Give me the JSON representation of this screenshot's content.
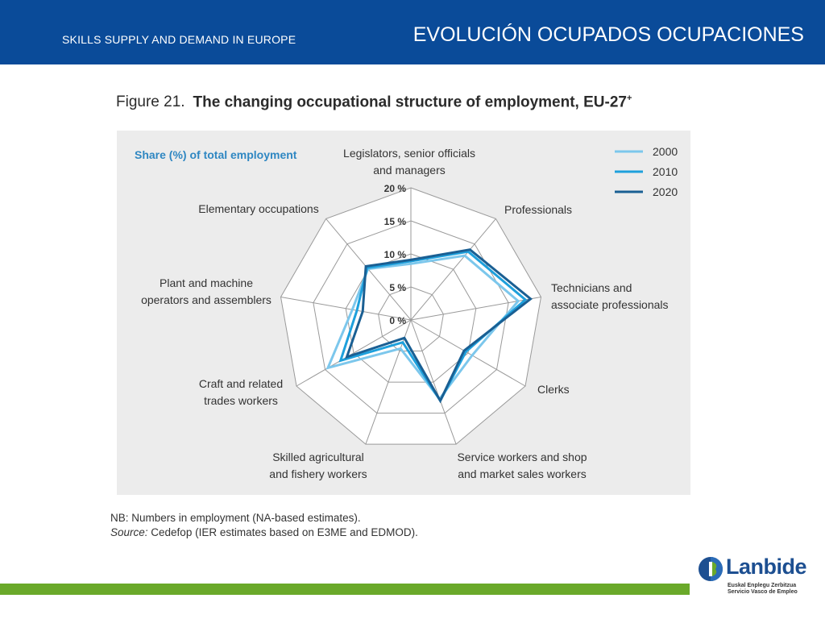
{
  "header": {
    "subtitle": "SKILLS SUPPLY AND DEMAND IN EUROPE",
    "title": "EVOLUCIÓN OCUPADOS OCUPACIONES",
    "bg_color": "#0a4b99"
  },
  "figure": {
    "number": "Figure 21.",
    "title": "The changing occupational structure of employment, EU-27",
    "title_sup": "+"
  },
  "chart_data": {
    "type": "radar",
    "title": "Share (%) of total employment",
    "categories": [
      [
        "Legislators, senior officials",
        "and managers"
      ],
      [
        "Professionals"
      ],
      [
        "Technicians and",
        "associate professionals"
      ],
      [
        "Clerks"
      ],
      [
        "Service workers and shop",
        "and market sales workers"
      ],
      [
        "Skilled agricultural",
        "and fishery workers"
      ],
      [
        "Craft and related",
        "trades workers"
      ],
      [
        "Plant and machine",
        "operators and assemblers"
      ],
      [
        "Elementary occupations"
      ]
    ],
    "radial_ticks": [
      "0 %",
      "5 %",
      "10 %",
      "15 %",
      "20 %"
    ],
    "rmax": 20,
    "series": [
      {
        "name": "2000",
        "color": "#7cc7ec",
        "values": [
          8.5,
          12.7,
          16.5,
          10.7,
          12.7,
          4.6,
          14.5,
          9.0,
          10.1
        ]
      },
      {
        "name": "2010",
        "color": "#1ea0dc",
        "values": [
          8.9,
          13.5,
          17.6,
          9.6,
          13.0,
          3.6,
          12.3,
          8.3,
          10.3
        ]
      },
      {
        "name": "2020",
        "color": "#1a5f93",
        "values": [
          9.1,
          13.9,
          18.4,
          9.3,
          13.0,
          2.9,
          11.2,
          7.4,
          10.6
        ]
      }
    ],
    "legend_position": "top-right",
    "grid": true
  },
  "notes": {
    "nb": "NB: Numbers in employment (NA-based estimates).",
    "source_label": "Source:",
    "source_text": " Cedefop (IER estimates based on E3ME and EDMOD)."
  },
  "logo": {
    "word": "Lanbide",
    "tagline_1": "Euskal Enplegu Zerbitzua",
    "tagline_2": "Servicio Vasco de Empleo",
    "color": "#1d4f91",
    "accent": "#6aa92a"
  }
}
